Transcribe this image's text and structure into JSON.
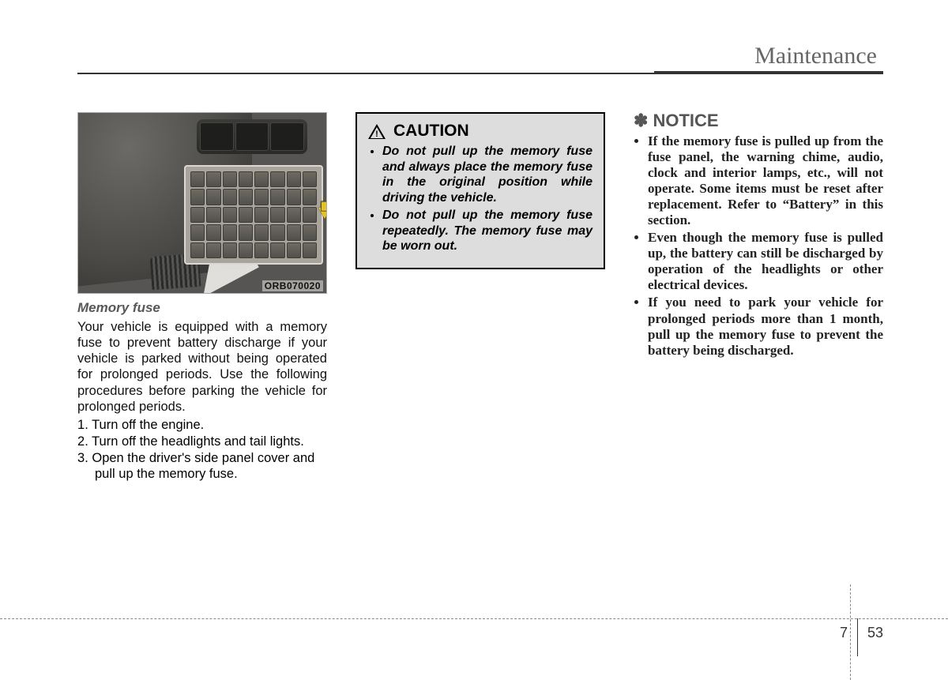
{
  "header": {
    "title": "Maintenance"
  },
  "figure": {
    "code": "ORB070020",
    "caption": "Memory fuse"
  },
  "left": {
    "intro": "Your vehicle is equipped with a memory fuse to prevent battery discharge if your vehicle is parked without being operated for prolonged periods. Use the following procedures before parking the vehicle for prolonged periods.",
    "steps": [
      "Turn off the engine.",
      "Turn off the headlights and tail lights.",
      "Open the driver's side panel cover and pull up the memory fuse."
    ]
  },
  "caution": {
    "title": "CAUTION",
    "items": [
      "Do not pull up the memory fuse and always place the memory fuse in the original position while driving the vehicle.",
      "Do not pull up the memory fuse repeatedly. The memory fuse may be worn out."
    ]
  },
  "notice": {
    "title": "NOTICE",
    "items": [
      "If the memory fuse is pulled up from the fuse panel, the warning chime, audio, clock and interior lamps, etc., will not operate. Some items must be reset after replacement. Refer to “Battery” in this section.",
      "Even though the memory fuse is pulled up, the battery can still be discharged by operation of the headlights or other electrical devices.",
      "If you need to park your vehicle for prolonged periods more than 1 month, pull up the memory fuse to prevent the battery being discharged."
    ]
  },
  "footer": {
    "section": "7",
    "page": "53"
  }
}
